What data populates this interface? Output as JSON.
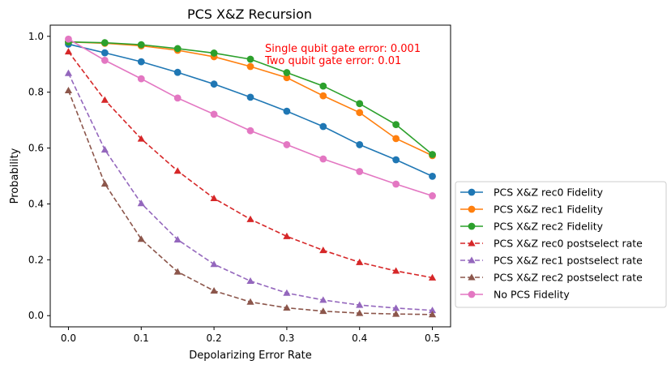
{
  "chart_data": {
    "type": "line",
    "title": "PCS X&Z Recursion",
    "xlabel": "Depolarizing Error Rate",
    "ylabel": "Probability",
    "xlim": [
      -0.025,
      0.525
    ],
    "ylim": [
      -0.04,
      1.04
    ],
    "x_ticks": [
      0.0,
      0.1,
      0.2,
      0.3,
      0.4,
      0.5
    ],
    "x_tick_labels": [
      "0.0",
      "0.1",
      "0.2",
      "0.3",
      "0.4",
      "0.5"
    ],
    "y_ticks": [
      0.0,
      0.2,
      0.4,
      0.6,
      0.8,
      1.0
    ],
    "y_tick_labels": [
      "0.0",
      "0.2",
      "0.4",
      "0.6",
      "0.8",
      "1.0"
    ],
    "grid": false,
    "legend_placement": "outside-right",
    "annotations": [
      "Single qubit gate error: 0.001",
      "Two qubit gate error: 0.01"
    ],
    "annotation_color": "#ff0000",
    "x": [
      0.0,
      0.05,
      0.1,
      0.15,
      0.2,
      0.25,
      0.3,
      0.35,
      0.4,
      0.45,
      0.5
    ],
    "series": [
      {
        "name": "PCS X&Z rec0 Fidelity",
        "color": "#1f77b4",
        "marker": "circle",
        "linestyle": "solid",
        "values": [
          0.972,
          0.941,
          0.909,
          0.871,
          0.829,
          0.782,
          0.732,
          0.677,
          0.612,
          0.558,
          0.499
        ]
      },
      {
        "name": "PCS X&Z rec1 Fidelity",
        "color": "#ff7f0e",
        "marker": "circle",
        "linestyle": "solid",
        "values": [
          0.98,
          0.975,
          0.966,
          0.95,
          0.927,
          0.892,
          0.852,
          0.787,
          0.727,
          0.634,
          0.573
        ]
      },
      {
        "name": "PCS X&Z rec2 Fidelity",
        "color": "#2ca02c",
        "marker": "circle",
        "linestyle": "solid",
        "values": [
          0.98,
          0.977,
          0.97,
          0.956,
          0.94,
          0.918,
          0.87,
          0.822,
          0.759,
          0.684,
          0.577
        ]
      },
      {
        "name": "PCS X&Z rec0 postselect rate",
        "color": "#d62728",
        "marker": "triangle",
        "linestyle": "dashed",
        "values": [
          0.945,
          0.772,
          0.633,
          0.518,
          0.42,
          0.345,
          0.284,
          0.234,
          0.191,
          0.16,
          0.136
        ]
      },
      {
        "name": "PCS X&Z rec1 postselect rate",
        "color": "#9467bd",
        "marker": "triangle",
        "linestyle": "dashed",
        "values": [
          0.868,
          0.594,
          0.402,
          0.272,
          0.184,
          0.124,
          0.081,
          0.056,
          0.038,
          0.027,
          0.019
        ]
      },
      {
        "name": "PCS X&Z rec2 postselect rate",
        "color": "#8c564b",
        "marker": "triangle",
        "linestyle": "dashed",
        "values": [
          0.806,
          0.472,
          0.274,
          0.157,
          0.089,
          0.049,
          0.028,
          0.016,
          0.009,
          0.006,
          0.004
        ]
      },
      {
        "name": "No PCS Fidelity",
        "color": "#e377c2",
        "marker": "circle",
        "linestyle": "solid",
        "values": [
          0.99,
          0.914,
          0.848,
          0.779,
          0.721,
          0.662,
          0.612,
          0.561,
          0.516,
          0.471,
          0.429
        ]
      }
    ]
  }
}
